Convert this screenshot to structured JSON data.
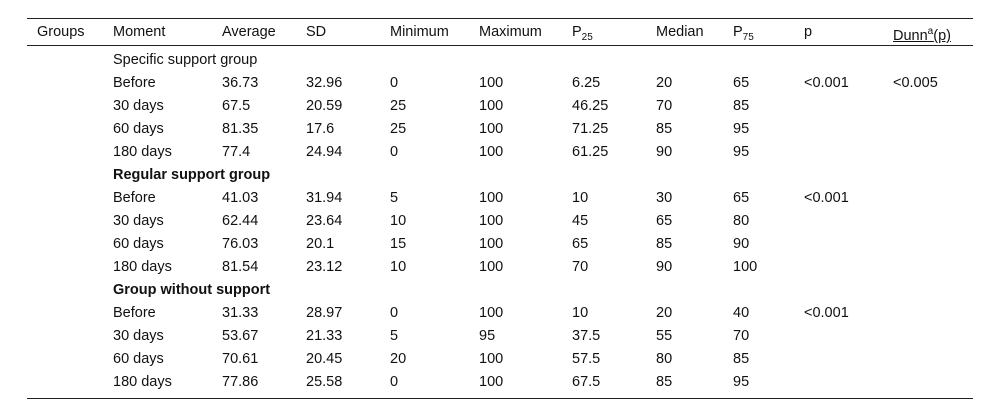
{
  "table": {
    "header": [
      "Groups",
      "Moment",
      "Average",
      "SD",
      "Minimum",
      "Maximum",
      {
        "text": "P",
        "sub": "25"
      },
      "Median",
      {
        "text": "P",
        "sub": "75"
      },
      "p",
      {
        "text": "Dunn",
        "sup": "a",
        "after": "(p)"
      }
    ],
    "groups": [
      {
        "title": "Specific support group",
        "rows": [
          {
            "cells": [
              "Before",
              36.73,
              32.96,
              0,
              100,
              6.25,
              20,
              65
            ],
            "p": "<0.001",
            "dunn": "<0.005"
          },
          {
            "cells": [
              "30 days",
              67.5,
              20.59,
              25,
              100,
              46.25,
              70,
              85
            ]
          },
          {
            "cells": [
              "60 days",
              81.35,
              17.6,
              25,
              100,
              71.25,
              85,
              95
            ]
          },
          {
            "cells": [
              "180 days",
              77.4,
              24.94,
              0,
              100,
              61.25,
              90,
              95
            ]
          }
        ]
      },
      {
        "title": "Regular support group",
        "rows": [
          {
            "cells": [
              "Before",
              41.03,
              31.94,
              5,
              100,
              10,
              30,
              65
            ],
            "p": "<0.001"
          },
          {
            "cells": [
              "30 days",
              62.44,
              23.64,
              10,
              100,
              45,
              65,
              80
            ]
          },
          {
            "cells": [
              "60 days",
              76.03,
              20.1,
              15,
              100,
              65,
              85,
              90
            ]
          },
          {
            "cells": [
              "180 days",
              81.54,
              23.12,
              10,
              100,
              70,
              90,
              100
            ]
          }
        ]
      },
      {
        "title": "Group without support",
        "rows": [
          {
            "cells": [
              "Before",
              31.33,
              28.97,
              0,
              100,
              10,
              20,
              40
            ],
            "p": "<0.001"
          },
          {
            "cells": [
              "30 days",
              53.67,
              21.33,
              5,
              95,
              37.5,
              55,
              70
            ]
          },
          {
            "cells": [
              "60 days",
              70.61,
              20.45,
              20,
              100,
              57.5,
              80,
              85
            ]
          },
          {
            "cells": [
              "180 days",
              77.86,
              25.58,
              0,
              100,
              67.5,
              85,
              95
            ]
          }
        ]
      }
    ]
  }
}
